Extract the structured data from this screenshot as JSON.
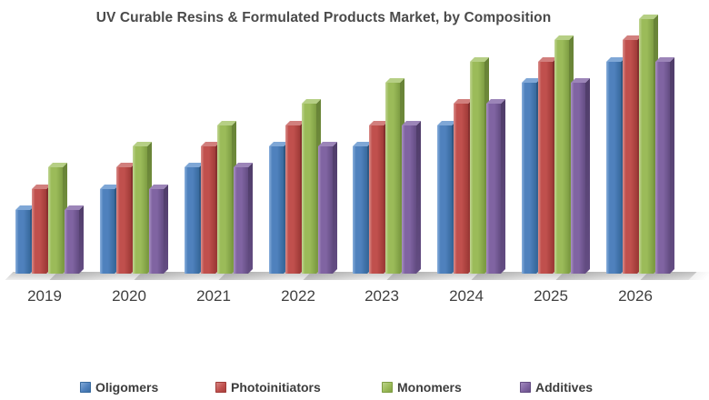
{
  "title": "UV Curable Resins & Formulated Products Market, by Composition",
  "chart_data": {
    "type": "bar",
    "style": "3d-clustered-column",
    "title": "UV Curable Resins & Formulated Products Market, by Composition",
    "xlabel": "",
    "ylabel": "",
    "categories": [
      "2019",
      "2020",
      "2021",
      "2022",
      "2023",
      "2024",
      "2025",
      "2026"
    ],
    "series": [
      {
        "name": "Oligomers",
        "values": [
          3,
          4,
          5,
          6,
          6,
          7,
          9,
          10
        ],
        "colors": {
          "base": "#4F81BD",
          "light": "#8AB0DC",
          "dark": "#386A9E",
          "side": "#2E5680",
          "top": "#7FA7D6"
        }
      },
      {
        "name": "Photoinitiators",
        "values": [
          4,
          5,
          6,
          7,
          7,
          8,
          10,
          11
        ],
        "colors": {
          "base": "#C0504D",
          "light": "#DA8E8B",
          "dark": "#A03B38",
          "side": "#832F2D",
          "top": "#D17F7D"
        }
      },
      {
        "name": "Monomers",
        "values": [
          5,
          6,
          7,
          8,
          9,
          10,
          11,
          12
        ],
        "colors": {
          "base": "#9BBB59",
          "light": "#C2D694",
          "dark": "#7E9D43",
          "side": "#688337",
          "top": "#B6CF85"
        }
      },
      {
        "name": "Additives",
        "values": [
          3,
          4,
          5,
          6,
          7,
          8,
          9,
          10
        ],
        "colors": {
          "base": "#8064A2",
          "light": "#A991C3",
          "dark": "#634C82",
          "side": "#503D6A",
          "top": "#9C85B8"
        }
      }
    ],
    "value_axis": {
      "labels_visible": false,
      "range_units": [
        0,
        12
      ]
    },
    "legend_position": "bottom"
  },
  "legend": {
    "items": [
      "Oligomers",
      "Photoinitiators",
      "Monomers",
      "Additives"
    ]
  }
}
